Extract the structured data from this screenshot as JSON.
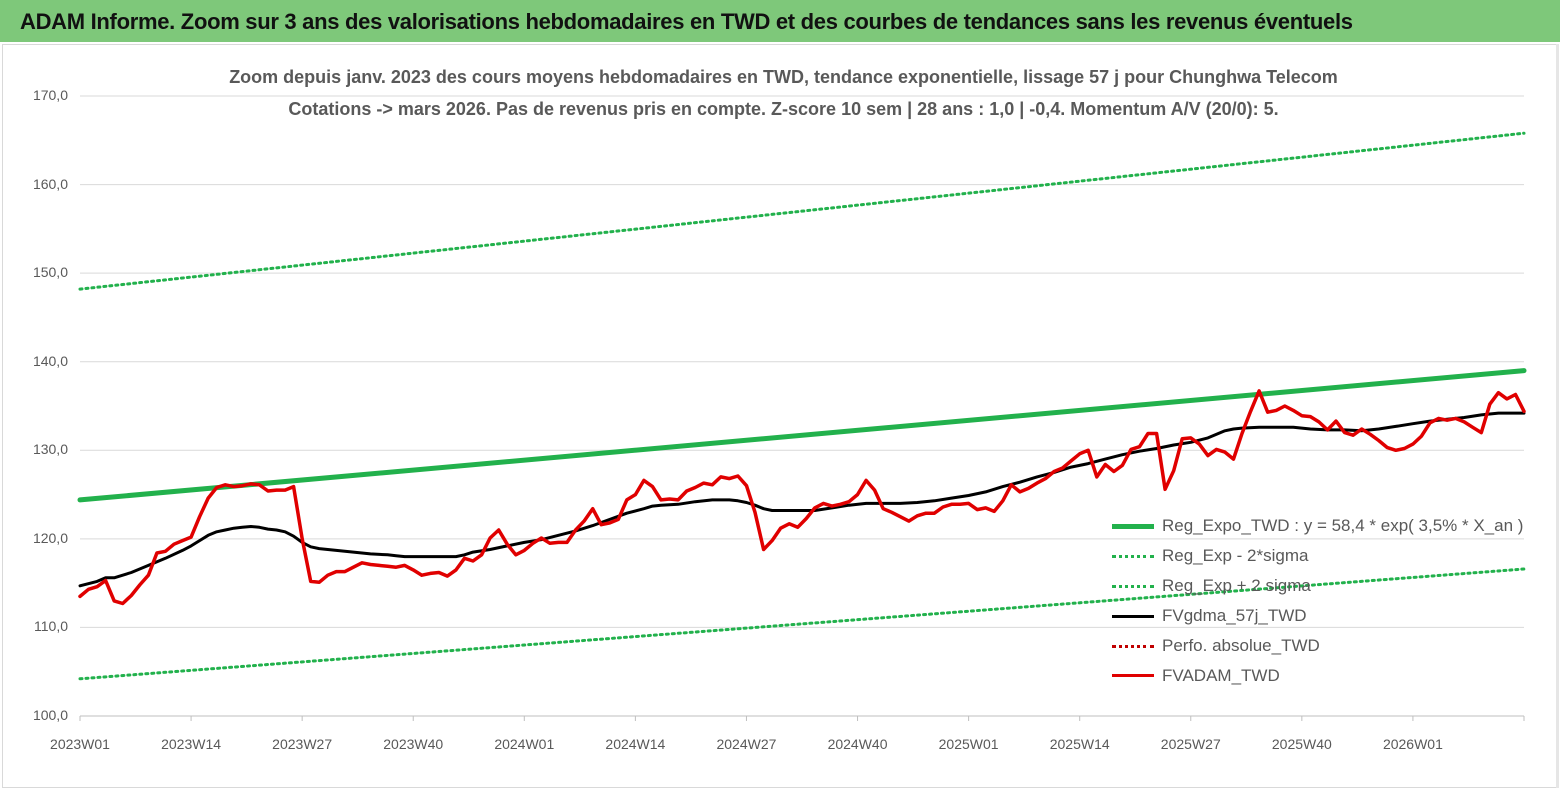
{
  "banner": {
    "title": "ADAM Informe. Zoom sur 3 ans des valorisations hebdomadaires en TWD et des courbes de tendances sans les revenus éventuels"
  },
  "chart_data": {
    "type": "line",
    "title": "Zoom depuis janv. 2023 des cours moyens hebdomadaires en TWD, tendance exponentielle, lissage 57 j pour Chunghwa Telecom",
    "subtitle": "Cotations -> mars 2026. Pas de revenus pris en compte. Z-score 10 sem | 28 ans : 1,0 | -0,4. Momentum A/V (20/0): 5.",
    "xlabel": "",
    "ylabel": "",
    "ylim": [
      100,
      170
    ],
    "xlim": [
      0,
      169
    ],
    "y_ticks": [
      "100,0",
      "110,0",
      "120,0",
      "130,0",
      "140,0",
      "150,0",
      "160,0",
      "170,0"
    ],
    "x_ticks": [
      {
        "label": "2023W01",
        "x": 0
      },
      {
        "label": "2023W14",
        "x": 13
      },
      {
        "label": "2023W27",
        "x": 26
      },
      {
        "label": "2023W40",
        "x": 39
      },
      {
        "label": "2024W01",
        "x": 52
      },
      {
        "label": "2024W14",
        "x": 65
      },
      {
        "label": "2024W27",
        "x": 78
      },
      {
        "label": "2024W40",
        "x": 91
      },
      {
        "label": "2025W01",
        "x": 104
      },
      {
        "label": "2025W14",
        "x": 117
      },
      {
        "label": "2025W27",
        "x": 130
      },
      {
        "label": "2025W40",
        "x": 143
      },
      {
        "label": "2026W01",
        "x": 156
      }
    ],
    "grid": "horizontal",
    "legend_position": "bottom-right",
    "series": [
      {
        "name": "Reg_Expo_TWD : y = 58,4 * exp( 3,5% *  X_an )",
        "style": "solid-thick",
        "color": "#22b14c",
        "points": [
          [
            0,
            124.4
          ],
          [
            169,
            139.0
          ]
        ]
      },
      {
        "name": "Reg_Exp - 2*sigma",
        "style": "dotted",
        "color": "#22b14c",
        "points": [
          [
            0,
            104.2
          ],
          [
            169,
            116.6
          ]
        ]
      },
      {
        "name": "Reg_Exp + 2 sigma",
        "style": "dotted",
        "color": "#22b14c",
        "points": [
          [
            0,
            148.2
          ],
          [
            169,
            165.8
          ]
        ]
      },
      {
        "name": "FVgdma_57j_TWD",
        "style": "solid",
        "color": "#000000",
        "points": [
          [
            0,
            114.7
          ],
          [
            2,
            115.2
          ],
          [
            3,
            115.6
          ],
          [
            4,
            115.6
          ],
          [
            6,
            116.2
          ],
          [
            8,
            117.0
          ],
          [
            10,
            117.8
          ],
          [
            12,
            118.7
          ],
          [
            13,
            119.2
          ],
          [
            14,
            119.8
          ],
          [
            15,
            120.4
          ],
          [
            16,
            120.8
          ],
          [
            17,
            121.0
          ],
          [
            18,
            121.2
          ],
          [
            19,
            121.3
          ],
          [
            20,
            121.4
          ],
          [
            21,
            121.3
          ],
          [
            22,
            121.1
          ],
          [
            23,
            121.0
          ],
          [
            24,
            120.8
          ],
          [
            25,
            120.3
          ],
          [
            26,
            119.6
          ],
          [
            27,
            119.1
          ],
          [
            28,
            118.9
          ],
          [
            30,
            118.7
          ],
          [
            32,
            118.5
          ],
          [
            34,
            118.3
          ],
          [
            36,
            118.2
          ],
          [
            37,
            118.1
          ],
          [
            38,
            118.0
          ],
          [
            40,
            118.0
          ],
          [
            42,
            118.0
          ],
          [
            44,
            118.0
          ],
          [
            45,
            118.2
          ],
          [
            46,
            118.5
          ],
          [
            48,
            118.8
          ],
          [
            50,
            119.2
          ],
          [
            52,
            119.6
          ],
          [
            54,
            119.9
          ],
          [
            56,
            120.4
          ],
          [
            58,
            120.9
          ],
          [
            60,
            121.5
          ],
          [
            62,
            122.2
          ],
          [
            64,
            122.9
          ],
          [
            66,
            123.4
          ],
          [
            67,
            123.7
          ],
          [
            68,
            123.8
          ],
          [
            70,
            123.9
          ],
          [
            72,
            124.2
          ],
          [
            74,
            124.4
          ],
          [
            76,
            124.4
          ],
          [
            77,
            124.3
          ],
          [
            78,
            124.1
          ],
          [
            79,
            123.8
          ],
          [
            80,
            123.4
          ],
          [
            81,
            123.2
          ],
          [
            82,
            123.2
          ],
          [
            84,
            123.2
          ],
          [
            86,
            123.2
          ],
          [
            88,
            123.5
          ],
          [
            90,
            123.8
          ],
          [
            92,
            124.0
          ],
          [
            94,
            124.0
          ],
          [
            96,
            124.0
          ],
          [
            98,
            124.1
          ],
          [
            100,
            124.3
          ],
          [
            102,
            124.6
          ],
          [
            104,
            124.9
          ],
          [
            106,
            125.3
          ],
          [
            108,
            125.9
          ],
          [
            110,
            126.4
          ],
          [
            112,
            127.0
          ],
          [
            114,
            127.5
          ],
          [
            116,
            128.1
          ],
          [
            118,
            128.5
          ],
          [
            120,
            129.0
          ],
          [
            122,
            129.5
          ],
          [
            124,
            129.9
          ],
          [
            126,
            130.2
          ],
          [
            128,
            130.6
          ],
          [
            130,
            130.9
          ],
          [
            132,
            131.4
          ],
          [
            134,
            132.2
          ],
          [
            135,
            132.4
          ],
          [
            136,
            132.5
          ],
          [
            138,
            132.6
          ],
          [
            140,
            132.6
          ],
          [
            142,
            132.6
          ],
          [
            144,
            132.4
          ],
          [
            146,
            132.3
          ],
          [
            148,
            132.3
          ],
          [
            150,
            132.2
          ],
          [
            152,
            132.4
          ],
          [
            154,
            132.7
          ],
          [
            156,
            133.0
          ],
          [
            158,
            133.3
          ],
          [
            160,
            133.5
          ],
          [
            162,
            133.7
          ],
          [
            164,
            134.0
          ],
          [
            166,
            134.2
          ],
          [
            167,
            134.2
          ],
          [
            169,
            134.2
          ]
        ]
      },
      {
        "name": "Perfo. absolue_TWD",
        "style": "dotted",
        "color": "#c00000",
        "points": []
      },
      {
        "name": "FVADAM_TWD",
        "style": "solid-thick",
        "color": "#e00000",
        "points": [
          [
            0,
            113.5
          ],
          [
            1,
            114.3
          ],
          [
            2,
            114.6
          ],
          [
            3,
            115.3
          ],
          [
            4,
            113.0
          ],
          [
            5,
            112.7
          ],
          [
            6,
            113.6
          ],
          [
            7,
            114.8
          ],
          [
            8,
            115.9
          ],
          [
            9,
            118.4
          ],
          [
            10,
            118.6
          ],
          [
            11,
            119.4
          ],
          [
            12,
            119.8
          ],
          [
            13,
            120.2
          ],
          [
            14,
            122.5
          ],
          [
            15,
            124.6
          ],
          [
            16,
            125.8
          ],
          [
            17,
            126.1
          ],
          [
            18,
            125.9
          ],
          [
            19,
            126.0
          ],
          [
            20,
            126.2
          ],
          [
            21,
            126.1
          ],
          [
            22,
            125.4
          ],
          [
            23,
            125.5
          ],
          [
            24,
            125.5
          ],
          [
            25,
            125.9
          ],
          [
            26,
            120.0
          ],
          [
            27,
            115.2
          ],
          [
            28,
            115.1
          ],
          [
            29,
            115.9
          ],
          [
            30,
            116.3
          ],
          [
            31,
            116.3
          ],
          [
            32,
            116.8
          ],
          [
            33,
            117.3
          ],
          [
            34,
            117.1
          ],
          [
            35,
            117.0
          ],
          [
            36,
            116.9
          ],
          [
            37,
            116.8
          ],
          [
            38,
            117.0
          ],
          [
            39,
            116.5
          ],
          [
            40,
            115.9
          ],
          [
            41,
            116.1
          ],
          [
            42,
            116.2
          ],
          [
            43,
            115.8
          ],
          [
            44,
            116.5
          ],
          [
            45,
            117.8
          ],
          [
            46,
            117.5
          ],
          [
            47,
            118.2
          ],
          [
            48,
            120.1
          ],
          [
            49,
            121.0
          ],
          [
            50,
            119.4
          ],
          [
            51,
            118.2
          ],
          [
            52,
            118.7
          ],
          [
            53,
            119.5
          ],
          [
            54,
            120.1
          ],
          [
            55,
            119.5
          ],
          [
            56,
            119.6
          ],
          [
            57,
            119.6
          ],
          [
            58,
            121.0
          ],
          [
            59,
            122.0
          ],
          [
            60,
            123.4
          ],
          [
            61,
            121.6
          ],
          [
            62,
            121.8
          ],
          [
            63,
            122.2
          ],
          [
            64,
            124.4
          ],
          [
            65,
            125.0
          ],
          [
            66,
            126.6
          ],
          [
            67,
            125.9
          ],
          [
            68,
            124.4
          ],
          [
            69,
            124.5
          ],
          [
            70,
            124.4
          ],
          [
            71,
            125.4
          ],
          [
            72,
            125.8
          ],
          [
            73,
            126.3
          ],
          [
            74,
            126.1
          ],
          [
            75,
            127.0
          ],
          [
            76,
            126.8
          ],
          [
            77,
            127.1
          ],
          [
            78,
            126.0
          ],
          [
            79,
            123.0
          ],
          [
            80,
            118.8
          ],
          [
            81,
            119.8
          ],
          [
            82,
            121.2
          ],
          [
            83,
            121.7
          ],
          [
            84,
            121.3
          ],
          [
            85,
            122.3
          ],
          [
            86,
            123.5
          ],
          [
            87,
            124.0
          ],
          [
            88,
            123.7
          ],
          [
            89,
            123.9
          ],
          [
            90,
            124.2
          ],
          [
            91,
            125.0
          ],
          [
            92,
            126.6
          ],
          [
            93,
            125.5
          ],
          [
            94,
            123.4
          ],
          [
            95,
            123.0
          ],
          [
            96,
            122.5
          ],
          [
            97,
            122.0
          ],
          [
            98,
            122.6
          ],
          [
            99,
            122.9
          ],
          [
            100,
            122.9
          ],
          [
            101,
            123.6
          ],
          [
            102,
            123.9
          ],
          [
            103,
            123.9
          ],
          [
            104,
            124.0
          ],
          [
            105,
            123.3
          ],
          [
            106,
            123.5
          ],
          [
            107,
            123.1
          ],
          [
            108,
            124.3
          ],
          [
            109,
            126.1
          ],
          [
            110,
            125.3
          ],
          [
            111,
            125.7
          ],
          [
            112,
            126.3
          ],
          [
            113,
            126.8
          ],
          [
            114,
            127.6
          ],
          [
            115,
            128.0
          ],
          [
            116,
            128.8
          ],
          [
            117,
            129.6
          ],
          [
            118,
            130.0
          ],
          [
            119,
            127.0
          ],
          [
            120,
            128.4
          ],
          [
            121,
            127.6
          ],
          [
            122,
            128.3
          ],
          [
            123,
            130.1
          ],
          [
            124,
            130.4
          ],
          [
            125,
            131.9
          ],
          [
            126,
            131.9
          ],
          [
            127,
            125.6
          ],
          [
            128,
            127.7
          ],
          [
            129,
            131.3
          ],
          [
            130,
            131.4
          ],
          [
            131,
            130.7
          ],
          [
            132,
            129.4
          ],
          [
            133,
            130.1
          ],
          [
            134,
            129.8
          ],
          [
            135,
            129.0
          ],
          [
            136,
            131.9
          ],
          [
            137,
            134.4
          ],
          [
            138,
            136.7
          ],
          [
            139,
            134.3
          ],
          [
            140,
            134.5
          ],
          [
            141,
            135.0
          ],
          [
            142,
            134.5
          ],
          [
            143,
            133.9
          ],
          [
            144,
            133.8
          ],
          [
            145,
            133.2
          ],
          [
            146,
            132.3
          ],
          [
            147,
            133.3
          ],
          [
            148,
            132.0
          ],
          [
            149,
            131.7
          ],
          [
            150,
            132.4
          ],
          [
            151,
            131.8
          ],
          [
            152,
            131.1
          ],
          [
            153,
            130.3
          ],
          [
            154,
            130.0
          ],
          [
            155,
            130.2
          ],
          [
            156,
            130.7
          ],
          [
            157,
            131.6
          ],
          [
            158,
            133.1
          ],
          [
            159,
            133.6
          ],
          [
            160,
            133.4
          ],
          [
            161,
            133.6
          ],
          [
            162,
            133.2
          ],
          [
            163,
            132.6
          ],
          [
            164,
            132.0
          ],
          [
            165,
            135.2
          ],
          [
            166,
            136.5
          ],
          [
            167,
            135.8
          ],
          [
            168,
            136.3
          ],
          [
            169,
            134.4
          ]
        ]
      }
    ]
  }
}
